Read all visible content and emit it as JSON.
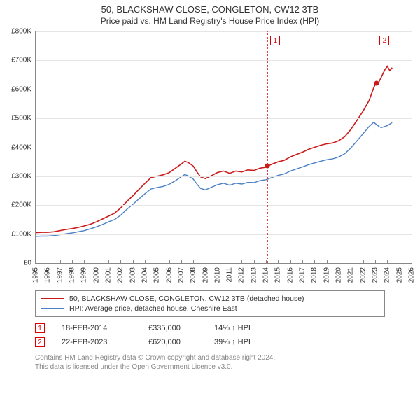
{
  "chart": {
    "title": "50, BLACKSHAW CLOSE, CONGLETON, CW12 3TB",
    "subtitle": "Price paid vs. HM Land Registry's House Price Index (HPI)",
    "background_color": "#ffffff",
    "grid_color": "#e5e5e5",
    "axis_color": "#888888",
    "text_color": "#333333",
    "title_fontsize": 13,
    "subtitle_fontsize": 12,
    "tick_fontsize": 10,
    "x": {
      "min": 1995,
      "max": 2026,
      "ticks": [
        1995,
        1996,
        1997,
        1998,
        1999,
        2000,
        2001,
        2002,
        2003,
        2004,
        2005,
        2006,
        2007,
        2008,
        2009,
        2010,
        2011,
        2012,
        2013,
        2014,
        2015,
        2016,
        2017,
        2018,
        2019,
        2020,
        2021,
        2022,
        2023,
        2024,
        2025,
        2026
      ]
    },
    "y": {
      "min": 0,
      "max": 800000,
      "ticks": [
        0,
        100000,
        200000,
        300000,
        400000,
        500000,
        600000,
        700000,
        800000
      ],
      "labels": [
        "£0",
        "£100K",
        "£200K",
        "£300K",
        "£400K",
        "£500K",
        "£600K",
        "£700K",
        "£800K"
      ]
    },
    "series": [
      {
        "id": "property",
        "label": "50, BLACKSHAW CLOSE, CONGLETON, CW12 3TB (detached house)",
        "color": "#cc1a1a",
        "line_width": 1.6,
        "points": [
          [
            1995.0,
            105000
          ],
          [
            1995.5,
            106000
          ],
          [
            1996.0,
            106000
          ],
          [
            1996.5,
            108000
          ],
          [
            1997.0,
            112000
          ],
          [
            1997.5,
            116000
          ],
          [
            1998.0,
            119000
          ],
          [
            1998.5,
            123000
          ],
          [
            1999.0,
            128000
          ],
          [
            1999.5,
            134000
          ],
          [
            2000.0,
            142000
          ],
          [
            2000.5,
            152000
          ],
          [
            2001.0,
            162000
          ],
          [
            2001.5,
            172000
          ],
          [
            2002.0,
            190000
          ],
          [
            2002.5,
            212000
          ],
          [
            2003.0,
            232000
          ],
          [
            2003.5,
            254000
          ],
          [
            2004.0,
            275000
          ],
          [
            2004.5,
            295000
          ],
          [
            2005.0,
            300000
          ],
          [
            2005.5,
            305000
          ],
          [
            2006.0,
            312000
          ],
          [
            2006.5,
            327000
          ],
          [
            2007.0,
            342000
          ],
          [
            2007.3,
            352000
          ],
          [
            2007.6,
            347000
          ],
          [
            2008.0,
            335000
          ],
          [
            2008.3,
            315000
          ],
          [
            2008.6,
            298000
          ],
          [
            2009.0,
            292000
          ],
          [
            2009.5,
            302000
          ],
          [
            2010.0,
            313000
          ],
          [
            2010.5,
            318000
          ],
          [
            2011.0,
            310000
          ],
          [
            2011.5,
            318000
          ],
          [
            2012.0,
            315000
          ],
          [
            2012.5,
            322000
          ],
          [
            2013.0,
            320000
          ],
          [
            2013.5,
            328000
          ],
          [
            2014.0,
            331000
          ],
          [
            2014.13,
            335000
          ],
          [
            2014.5,
            342000
          ],
          [
            2015.0,
            350000
          ],
          [
            2015.5,
            355000
          ],
          [
            2016.0,
            367000
          ],
          [
            2016.5,
            375000
          ],
          [
            2017.0,
            383000
          ],
          [
            2017.5,
            393000
          ],
          [
            2018.0,
            400000
          ],
          [
            2018.5,
            407000
          ],
          [
            2019.0,
            412000
          ],
          [
            2019.5,
            415000
          ],
          [
            2020.0,
            423000
          ],
          [
            2020.5,
            437000
          ],
          [
            2021.0,
            462000
          ],
          [
            2021.5,
            493000
          ],
          [
            2022.0,
            525000
          ],
          [
            2022.5,
            562000
          ],
          [
            2022.9,
            608000
          ],
          [
            2023.0,
            615000
          ],
          [
            2023.14,
            620000
          ],
          [
            2023.3,
            625000
          ],
          [
            2023.5,
            642000
          ],
          [
            2023.8,
            668000
          ],
          [
            2024.0,
            680000
          ],
          [
            2024.2,
            665000
          ],
          [
            2024.4,
            675000
          ]
        ]
      },
      {
        "id": "hpi",
        "label": "HPI: Average price, detached house, Cheshire East",
        "color": "#4a80c4",
        "line_width": 1.4,
        "points": [
          [
            1995.0,
            92000
          ],
          [
            1995.5,
            93000
          ],
          [
            1996.0,
            93000
          ],
          [
            1996.5,
            95000
          ],
          [
            1997.0,
            98000
          ],
          [
            1997.5,
            101000
          ],
          [
            1998.0,
            104000
          ],
          [
            1998.5,
            108000
          ],
          [
            1999.0,
            112000
          ],
          [
            1999.5,
            118000
          ],
          [
            2000.0,
            125000
          ],
          [
            2000.5,
            133000
          ],
          [
            2001.0,
            142000
          ],
          [
            2001.5,
            150000
          ],
          [
            2002.0,
            165000
          ],
          [
            2002.5,
            185000
          ],
          [
            2003.0,
            202000
          ],
          [
            2003.5,
            221000
          ],
          [
            2004.0,
            239000
          ],
          [
            2004.5,
            256000
          ],
          [
            2005.0,
            261000
          ],
          [
            2005.5,
            265000
          ],
          [
            2006.0,
            272000
          ],
          [
            2006.5,
            284000
          ],
          [
            2007.0,
            298000
          ],
          [
            2007.3,
            306000
          ],
          [
            2007.6,
            301000
          ],
          [
            2008.0,
            290000
          ],
          [
            2008.3,
            273000
          ],
          [
            2008.6,
            258000
          ],
          [
            2009.0,
            253000
          ],
          [
            2009.5,
            262000
          ],
          [
            2010.0,
            271000
          ],
          [
            2010.5,
            276000
          ],
          [
            2011.0,
            269000
          ],
          [
            2011.5,
            276000
          ],
          [
            2012.0,
            273000
          ],
          [
            2012.5,
            279000
          ],
          [
            2013.0,
            278000
          ],
          [
            2013.5,
            285000
          ],
          [
            2014.0,
            288000
          ],
          [
            2014.13,
            290000
          ],
          [
            2014.5,
            296000
          ],
          [
            2015.0,
            303000
          ],
          [
            2015.5,
            308000
          ],
          [
            2016.0,
            318000
          ],
          [
            2016.5,
            325000
          ],
          [
            2017.0,
            332000
          ],
          [
            2017.5,
            340000
          ],
          [
            2018.0,
            346000
          ],
          [
            2018.5,
            352000
          ],
          [
            2019.0,
            357000
          ],
          [
            2019.5,
            360000
          ],
          [
            2020.0,
            367000
          ],
          [
            2020.5,
            378000
          ],
          [
            2021.0,
            398000
          ],
          [
            2021.5,
            422000
          ],
          [
            2022.0,
            447000
          ],
          [
            2022.5,
            472000
          ],
          [
            2022.9,
            487000
          ],
          [
            2023.0,
            482000
          ],
          [
            2023.14,
            478000
          ],
          [
            2023.3,
            472000
          ],
          [
            2023.5,
            468000
          ],
          [
            2024.0,
            475000
          ],
          [
            2024.4,
            485000
          ]
        ]
      }
    ],
    "event_vlines_color": "#dd4444",
    "events": [
      {
        "index_label": "1",
        "year": 2014.13,
        "date": "18-FEB-2014",
        "price_label": "£335,000",
        "price_value": 335000,
        "diff_label": "14% ↑ HPI",
        "dot_color": "#cc1a1a"
      },
      {
        "index_label": "2",
        "year": 2023.14,
        "date": "22-FEB-2023",
        "price_label": "£620,000",
        "price_value": 620000,
        "diff_label": "39% ↑ HPI",
        "dot_color": "#cc1a1a"
      }
    ]
  },
  "footer": {
    "line1": "Contains HM Land Registry data © Crown copyright and database right 2024.",
    "line2": "This data is licensed under the Open Government Licence v3.0."
  }
}
